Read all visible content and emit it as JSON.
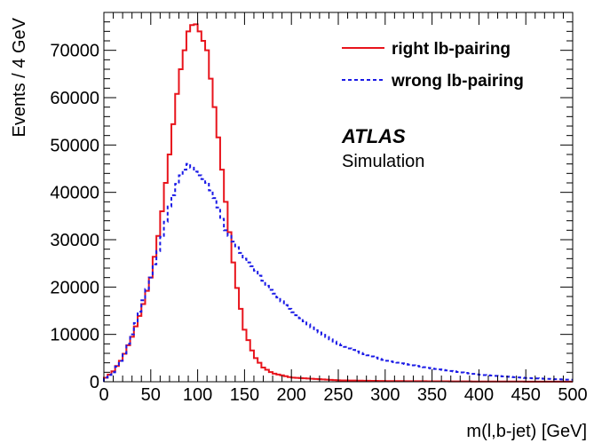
{
  "chart_data": {
    "type": "line",
    "style": "step-histogram",
    "title": "",
    "xlabel": "m(l,b-jet)  [GeV]",
    "ylabel": "Events / 4 GeV",
    "xlim": [
      0,
      500
    ],
    "ylim": [
      0,
      78000
    ],
    "bin_width": 4,
    "grid": false,
    "legend_position": "top-right",
    "x_ticks": [
      0,
      50,
      100,
      150,
      200,
      250,
      300,
      350,
      400,
      450,
      500
    ],
    "x_tick_labels": [
      "0",
      "50",
      "100",
      "150",
      "200",
      "250",
      "300",
      "350",
      "400",
      "450",
      "500"
    ],
    "y_ticks": [
      0,
      10000,
      20000,
      30000,
      40000,
      50000,
      60000,
      70000
    ],
    "y_tick_labels": [
      "0",
      "10000",
      "20000",
      "30000",
      "40000",
      "50000",
      "60000",
      "70000"
    ],
    "annotations": [
      {
        "text": "ATLAS",
        "style": "bold-italic"
      },
      {
        "text": "Simulation",
        "style": "normal"
      }
    ],
    "series": [
      {
        "name": "right lb-pairing",
        "color": "#e8141c",
        "line_style": "solid",
        "points": [
          [
            0,
            500
          ],
          [
            10,
            2200
          ],
          [
            20,
            5000
          ],
          [
            30,
            9500
          ],
          [
            40,
            15000
          ],
          [
            50,
            22000
          ],
          [
            60,
            33000
          ],
          [
            70,
            48000
          ],
          [
            80,
            64000
          ],
          [
            90,
            74000
          ],
          [
            96,
            76000
          ],
          [
            100,
            75000
          ],
          [
            110,
            70000
          ],
          [
            120,
            55000
          ],
          [
            130,
            38000
          ],
          [
            140,
            22000
          ],
          [
            150,
            11000
          ],
          [
            160,
            5500
          ],
          [
            170,
            3000
          ],
          [
            180,
            1800
          ],
          [
            200,
            900
          ],
          [
            250,
            300
          ],
          [
            300,
            150
          ],
          [
            400,
            50
          ],
          [
            500,
            20
          ]
        ]
      },
      {
        "name": "wrong lb-pairing",
        "color": "#1a1ae6",
        "line_style": "dashed",
        "points": [
          [
            0,
            600
          ],
          [
            10,
            2000
          ],
          [
            20,
            5000
          ],
          [
            30,
            10000
          ],
          [
            40,
            16000
          ],
          [
            50,
            22000
          ],
          [
            60,
            29000
          ],
          [
            70,
            37000
          ],
          [
            80,
            43000
          ],
          [
            90,
            46000
          ],
          [
            100,
            44000
          ],
          [
            110,
            42000
          ],
          [
            120,
            38000
          ],
          [
            130,
            32000
          ],
          [
            140,
            29000
          ],
          [
            150,
            26000
          ],
          [
            160,
            24000
          ],
          [
            175,
            20000
          ],
          [
            200,
            15000
          ],
          [
            225,
            11000
          ],
          [
            250,
            8000
          ],
          [
            275,
            6000
          ],
          [
            300,
            4500
          ],
          [
            350,
            2800
          ],
          [
            400,
            1500
          ],
          [
            450,
            800
          ],
          [
            500,
            400
          ]
        ]
      }
    ]
  }
}
